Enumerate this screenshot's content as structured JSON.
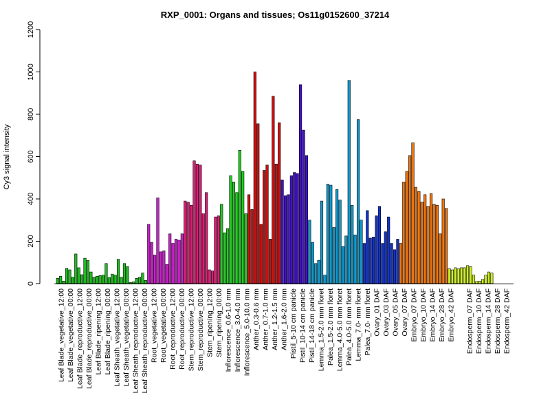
{
  "chart_data": {
    "type": "bar",
    "title": "RXP_0001: Organs and tissues; Os11g0152600_37214",
    "xlabel": "",
    "ylabel": "Cy3 signal intensity",
    "ylim": [
      0,
      1200
    ],
    "yticks": [
      0,
      200,
      400,
      600,
      800,
      1000,
      1200
    ],
    "grid": false,
    "legend": "none",
    "groups": [
      {
        "color": "#1fbf1f",
        "values": [
          25,
          35,
          12
        ]
      },
      {
        "color": "#1fbf1f",
        "values": [
          72,
          65,
          30
        ]
      },
      {
        "color": "#1fbf1f",
        "values": [
          140,
          75,
          42
        ]
      },
      {
        "color": "#1fbf1f",
        "values": [
          120,
          110,
          55
        ]
      },
      {
        "color": "#1fbf1f",
        "values": [
          30,
          35,
          38
        ]
      },
      {
        "color": "#1fbf1f",
        "values": [
          40,
          95,
          28
        ]
      },
      {
        "color": "#1fbf1f",
        "values": [
          45,
          40,
          115
        ]
      },
      {
        "color": "#1fbf1f",
        "values": [
          30,
          95,
          80
        ]
      },
      {
        "color": "#1fbf1f",
        "values": [
          5,
          8,
          25
        ]
      },
      {
        "color": "#1fbf1f",
        "values": [
          30,
          50,
          15
        ]
      },
      {
        "color": "#cc1fcc",
        "values": [
          280,
          195,
          135
        ]
      },
      {
        "color": "#cc1fcc",
        "values": [
          405,
          150,
          155
        ]
      },
      {
        "color": "#cc1fcc",
        "values": [
          90,
          235,
          190
        ]
      },
      {
        "color": "#cc1fcc",
        "values": [
          210,
          205,
          235
        ]
      },
      {
        "color": "#dd1f77",
        "values": [
          390,
          385,
          370
        ]
      },
      {
        "color": "#dd1f77",
        "values": [
          580,
          565,
          560
        ]
      },
      {
        "color": "#dd1f77",
        "values": [
          330,
          430,
          65
        ]
      },
      {
        "color": "#dd1f77",
        "values": [
          60,
          315,
          320
        ]
      },
      {
        "color": "#22cc22",
        "values": [
          375,
          240,
          260
        ]
      },
      {
        "color": "#22cc22",
        "values": [
          510,
          480,
          430
        ]
      },
      {
        "color": "#22cc22",
        "values": [
          630,
          530,
          330
        ]
      },
      {
        "color": "#cc1111",
        "values": [
          420,
          350
        ]
      },
      {
        "color": "#cc1111",
        "values": [
          1000,
          755,
          280
        ]
      },
      {
        "color": "#cc1111",
        "values": [
          535,
          560,
          210
        ]
      },
      {
        "color": "#cc1111",
        "values": [
          885,
          565,
          760
        ]
      },
      {
        "color": "#4411cc",
        "values": [
          490,
          415,
          420
        ]
      },
      {
        "color": "#4411cc",
        "values": [
          510,
          525,
          520
        ]
      },
      {
        "color": "#4411cc",
        "values": [
          940,
          725,
          605
        ]
      },
      {
        "color": "#1199cc",
        "values": [
          300,
          195,
          95
        ]
      },
      {
        "color": "#1199cc",
        "values": [
          110,
          390,
          40
        ]
      },
      {
        "color": "#1199cc",
        "values": [
          470,
          465,
          265
        ]
      },
      {
        "color": "#1199cc",
        "values": [
          445,
          395,
          175
        ]
      },
      {
        "color": "#1199cc",
        "values": [
          225,
          960,
          370
        ]
      },
      {
        "color": "#1199cc",
        "values": [
          230,
          775,
          300
        ]
      },
      {
        "color": "#1133cc",
        "values": [
          190,
          345,
          215
        ]
      },
      {
        "color": "#1133cc",
        "values": [
          220,
          320,
          365
        ]
      },
      {
        "color": "#1133cc",
        "values": [
          190,
          245,
          315
        ]
      },
      {
        "color": "#1133cc",
        "values": [
          190,
          160,
          210
        ]
      },
      {
        "color": "#ee7711",
        "values": [
          190,
          480,
          530
        ]
      },
      {
        "color": "#ee7711",
        "values": [
          605,
          665,
          455
        ]
      },
      {
        "color": "#ee7711",
        "values": [
          435,
          385,
          420
        ]
      },
      {
        "color": "#ee7711",
        "values": [
          365,
          425,
          375
        ]
      },
      {
        "color": "#ee7711",
        "values": [
          370,
          235,
          400
        ]
      },
      {
        "color": "#ee7711",
        "values": [
          355
        ]
      },
      {
        "color": "#ccee22",
        "values": [
          70,
          65,
          75
        ]
      },
      {
        "color": "#ccee22",
        "values": [
          70,
          75,
          75
        ]
      },
      {
        "color": "#ccee22",
        "values": [
          85,
          80,
          40
        ]
      },
      {
        "color": "#ccee22",
        "values": [
          10,
          12,
          20
        ]
      },
      {
        "color": "#ccee22",
        "values": [
          40,
          55,
          50
        ]
      }
    ],
    "categories": [
      "Leaf Blade_vegetative_12:00",
      "Leaf Blade_vegetative_00:00",
      "Leaf Blade_reproductive_12:00",
      "Leaf Blade_reproductive_00:00",
      "Leaf Blade_ripening_12:00",
      "Leaf Blade_ripening_00:00",
      "Leaf Sheath_vegetative_12:00",
      "Leaf Sheath_vegetative_00:00",
      "Leaf Sheath_reproductive_12:00",
      "Leaf Sheath_reproductive_00:00",
      "Root_vegetative_12:00",
      "Root_vegetative_00:00",
      "Root_reproductive_12:00",
      "Root_reproductive_00:00",
      "Stem_reproductive_12:00",
      "Stem_reproductive_00:00",
      "Stem_ripening_12:00",
      "Stem_ripening_00:00",
      "Inflorescence_0.6-1.0 mm",
      "Inflorescence_3.0-4.0 mm",
      "Inflorescence_5.0-10.0 mm",
      "Anther_0.3-0.6 mm",
      "Anther_0.7-1.0 mm",
      "Anther_1.2-1.5 mm",
      "Anther_1.6-2.0 mm",
      "Pistil_5-10 cm panicle",
      "Pistil_10-14 cm panicle",
      "Pistil_14-18 cm panicle",
      "Lemma_1.5-2.0 mm floret",
      "Palea_1.5-2.0 mm floret",
      "Lemma_4.0-5.0 mm floret",
      "Palea_4.0-5.0 mm floret",
      "Lemma_7.0- mm floret",
      "Palea_7.0- mm floret",
      "Ovary_01 DAF",
      "Ovary_03 DAF",
      "Ovary_05 DAF",
      "Ovary_07 DAF",
      "Embryo_07 DAF",
      "Embryo_10 DAF",
      "Embryo_14 DAF",
      "Embryo_28 DAF",
      "Embryo_42 DAF",
      "",
      "Endosperm_07 DAF",
      "Endosperm_10 DAF",
      "Endosperm_14 DAF",
      "Endosperm_28 DAF",
      "Endosperm_42 DAF"
    ]
  }
}
